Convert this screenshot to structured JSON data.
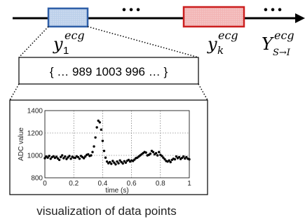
{
  "timeline": {
    "ellipsis": "• • •",
    "first_segment": {
      "symbol": "y",
      "subscript": "1",
      "superscript": "ecg",
      "color": "#2f5fa8",
      "fill": "#bcd0ea"
    },
    "kth_segment": {
      "symbol": "y",
      "subscript": "k",
      "superscript": "ecg",
      "color": "#cc1f1f",
      "fill": "#f2b5b5"
    },
    "sequence": {
      "symbol": "Y",
      "subscript": "S→I",
      "superscript": "ecg"
    }
  },
  "values_box": {
    "text": "{ … 989   1003   996 … }"
  },
  "caption": "visualization of data points",
  "chart_data": {
    "type": "scatter",
    "xlabel": "time (s)",
    "ylabel": "ADC value",
    "xlim": [
      0,
      1
    ],
    "ylim": [
      800,
      1400
    ],
    "xticks": [
      "0",
      "0.2",
      "0.4",
      "0.6",
      "0.8",
      "1"
    ],
    "yticks": [
      "800",
      "1000",
      "1200",
      "1400"
    ],
    "grid": true,
    "series": [
      {
        "color": "#000000",
        "x": [
          0.0,
          0.01,
          0.02,
          0.03,
          0.04,
          0.05,
          0.06,
          0.07,
          0.08,
          0.09,
          0.1,
          0.11,
          0.12,
          0.13,
          0.14,
          0.15,
          0.16,
          0.17,
          0.18,
          0.19,
          0.2,
          0.21,
          0.22,
          0.23,
          0.24,
          0.25,
          0.26,
          0.27,
          0.28,
          0.29,
          0.3,
          0.31,
          0.32,
          0.33,
          0.34,
          0.35,
          0.36,
          0.37,
          0.38,
          0.39,
          0.4,
          0.41,
          0.42,
          0.43,
          0.44,
          0.45,
          0.46,
          0.47,
          0.48,
          0.49,
          0.5,
          0.51,
          0.52,
          0.53,
          0.54,
          0.55,
          0.56,
          0.57,
          0.58,
          0.59,
          0.6,
          0.61,
          0.62,
          0.63,
          0.64,
          0.65,
          0.66,
          0.67,
          0.68,
          0.69,
          0.7,
          0.71,
          0.72,
          0.73,
          0.74,
          0.75,
          0.76,
          0.77,
          0.78,
          0.79,
          0.8,
          0.81,
          0.82,
          0.83,
          0.84,
          0.85,
          0.86,
          0.87,
          0.88,
          0.89,
          0.9,
          0.91,
          0.92,
          0.93,
          0.94,
          0.95,
          0.96,
          0.97,
          0.98,
          0.99,
          1.0
        ],
        "y": [
          975,
          990,
          980,
          995,
          970,
          985,
          992,
          978,
          988,
          972,
          960,
          985,
          1000,
          975,
          990,
          968,
          982,
          995,
          970,
          988,
          980,
          978,
          992,
          985,
          970,
          995,
          985,
          975,
          990,
          1005,
          1010,
          995,
          1000,
          1030,
          1080,
          1160,
          1250,
          1310,
          1295,
          1230,
          1130,
          1040,
          980,
          945,
          930,
          940,
          925,
          950,
          935,
          920,
          945,
          930,
          955,
          940,
          928,
          948,
          935,
          952,
          960,
          945,
          955,
          950,
          962,
          975,
          980,
          990,
          1000,
          1010,
          1020,
          1030,
          1025,
          1000,
          1005,
          1015,
          1040,
          1030,
          1010,
          1020,
          1000,
          1030,
          1005,
          995,
          980,
          965,
          950,
          945,
          955,
          940,
          960,
          970,
          965,
          990,
          975,
          985,
          968,
          978,
          990,
          972,
          985,
          970,
          965
        ]
      }
    ]
  }
}
